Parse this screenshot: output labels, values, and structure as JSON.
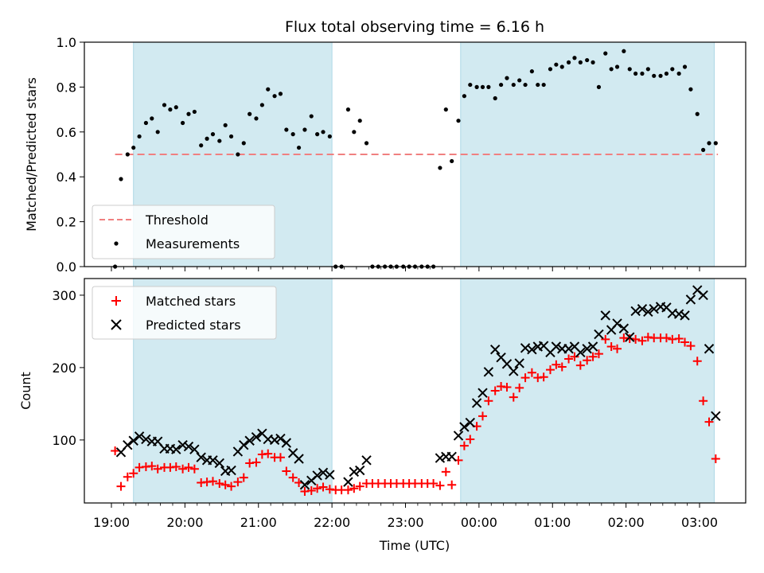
{
  "chart_data": {
    "type": "scatter",
    "title": "Flux total observing time = 6.16 h",
    "xlabel": "Time (UTC)",
    "x_ticks": [
      "19:00",
      "20:00",
      "21:00",
      "22:00",
      "23:00",
      "00:00",
      "01:00",
      "02:00",
      "03:00"
    ],
    "shaded_intervals_hours": [
      [
        19.3,
        22.0
      ],
      [
        23.75,
        27.2
      ]
    ],
    "shade_color": "#add8e6",
    "top": {
      "ylabel": "Matched/Predicted stars",
      "ylim": [
        0,
        1.0
      ],
      "y_ticks": [
        "0.0",
        "0.2",
        "0.4",
        "0.6",
        "0.8",
        "1.0"
      ],
      "threshold": {
        "name": "Threshold",
        "value": 0.5,
        "x_range_hours": [
          19.05,
          27.25
        ],
        "color": "#f08080"
      },
      "measurements_name": "Measurements",
      "measurements": [
        [
          19.05,
          0.0
        ],
        [
          19.13,
          0.39
        ],
        [
          19.22,
          0.5
        ],
        [
          19.3,
          0.53
        ],
        [
          19.38,
          0.58
        ],
        [
          19.47,
          0.64
        ],
        [
          19.55,
          0.66
        ],
        [
          19.63,
          0.6
        ],
        [
          19.72,
          0.72
        ],
        [
          19.8,
          0.7
        ],
        [
          19.88,
          0.71
        ],
        [
          19.97,
          0.64
        ],
        [
          20.05,
          0.68
        ],
        [
          20.13,
          0.69
        ],
        [
          20.22,
          0.54
        ],
        [
          20.3,
          0.57
        ],
        [
          20.38,
          0.59
        ],
        [
          20.47,
          0.56
        ],
        [
          20.55,
          0.63
        ],
        [
          20.63,
          0.58
        ],
        [
          20.72,
          0.5
        ],
        [
          20.8,
          0.55
        ],
        [
          20.88,
          0.68
        ],
        [
          20.97,
          0.66
        ],
        [
          21.05,
          0.72
        ],
        [
          21.13,
          0.79
        ],
        [
          21.22,
          0.76
        ],
        [
          21.3,
          0.77
        ],
        [
          21.38,
          0.61
        ],
        [
          21.47,
          0.59
        ],
        [
          21.55,
          0.53
        ],
        [
          21.63,
          0.61
        ],
        [
          21.72,
          0.67
        ],
        [
          21.8,
          0.59
        ],
        [
          21.88,
          0.6
        ],
        [
          21.97,
          0.58
        ],
        [
          22.05,
          0.0
        ],
        [
          22.13,
          0.0
        ],
        [
          22.22,
          0.7
        ],
        [
          22.3,
          0.6
        ],
        [
          22.38,
          0.65
        ],
        [
          22.47,
          0.55
        ],
        [
          22.55,
          0.0
        ],
        [
          22.63,
          0.0
        ],
        [
          22.72,
          0.0
        ],
        [
          22.8,
          0.0
        ],
        [
          22.88,
          0.0
        ],
        [
          22.97,
          0.0
        ],
        [
          23.05,
          0.0
        ],
        [
          23.13,
          0.0
        ],
        [
          23.22,
          0.0
        ],
        [
          23.3,
          0.0
        ],
        [
          23.38,
          0.0
        ],
        [
          23.47,
          0.44
        ],
        [
          23.55,
          0.7
        ],
        [
          23.63,
          0.47
        ],
        [
          23.72,
          0.65
        ],
        [
          23.8,
          0.76
        ],
        [
          23.88,
          0.81
        ],
        [
          23.97,
          0.8
        ],
        [
          24.05,
          0.8
        ],
        [
          24.13,
          0.8
        ],
        [
          24.22,
          0.75
        ],
        [
          24.3,
          0.81
        ],
        [
          24.38,
          0.84
        ],
        [
          24.47,
          0.81
        ],
        [
          24.55,
          0.83
        ],
        [
          24.63,
          0.81
        ],
        [
          24.72,
          0.87
        ],
        [
          24.8,
          0.81
        ],
        [
          24.88,
          0.81
        ],
        [
          24.97,
          0.88
        ],
        [
          25.05,
          0.9
        ],
        [
          25.13,
          0.89
        ],
        [
          25.22,
          0.91
        ],
        [
          25.3,
          0.93
        ],
        [
          25.38,
          0.91
        ],
        [
          25.47,
          0.92
        ],
        [
          25.55,
          0.91
        ],
        [
          25.63,
          0.8
        ],
        [
          25.72,
          0.95
        ],
        [
          25.8,
          0.88
        ],
        [
          25.88,
          0.89
        ],
        [
          25.97,
          0.96
        ],
        [
          26.05,
          0.88
        ],
        [
          26.13,
          0.86
        ],
        [
          26.22,
          0.86
        ],
        [
          26.3,
          0.88
        ],
        [
          26.38,
          0.85
        ],
        [
          26.47,
          0.85
        ],
        [
          26.55,
          0.86
        ],
        [
          26.63,
          0.88
        ],
        [
          26.72,
          0.86
        ],
        [
          26.8,
          0.89
        ],
        [
          26.88,
          0.79
        ],
        [
          26.97,
          0.68
        ],
        [
          27.05,
          0.52
        ],
        [
          27.13,
          0.55
        ],
        [
          27.22,
          0.55
        ]
      ]
    },
    "bottom": {
      "ylabel": "Count",
      "ylim": [
        13,
        323
      ],
      "y_ticks": [
        100,
        200,
        300
      ],
      "matched_name": "Matched stars",
      "matched_color": "#ff0000",
      "predicted_name": "Predicted stars",
      "predicted_color": "#000000",
      "matched": [
        [
          19.05,
          85
        ],
        [
          19.13,
          36
        ],
        [
          19.22,
          49
        ],
        [
          19.3,
          54
        ],
        [
          19.38,
          62
        ],
        [
          19.47,
          63
        ],
        [
          19.55,
          64
        ],
        [
          19.63,
          60
        ],
        [
          19.72,
          62
        ],
        [
          19.8,
          62
        ],
        [
          19.88,
          63
        ],
        [
          19.97,
          60
        ],
        [
          20.05,
          62
        ],
        [
          20.13,
          60
        ],
        [
          20.22,
          41
        ],
        [
          20.3,
          42
        ],
        [
          20.38,
          43
        ],
        [
          20.47,
          40
        ],
        [
          20.55,
          38
        ],
        [
          20.63,
          36
        ],
        [
          20.72,
          42
        ],
        [
          20.8,
          48
        ],
        [
          20.88,
          68
        ],
        [
          20.97,
          69
        ],
        [
          21.05,
          80
        ],
        [
          21.13,
          81
        ],
        [
          21.22,
          76
        ],
        [
          21.3,
          76
        ],
        [
          21.38,
          57
        ],
        [
          21.47,
          48
        ],
        [
          21.55,
          41
        ],
        [
          21.63,
          29
        ],
        [
          21.72,
          30
        ],
        [
          21.8,
          33
        ],
        [
          21.88,
          35
        ],
        [
          21.97,
          32
        ],
        [
          22.05,
          31
        ],
        [
          22.13,
          31
        ],
        [
          22.22,
          31
        ],
        [
          22.3,
          33
        ],
        [
          22.38,
          36
        ],
        [
          22.47,
          40
        ],
        [
          22.55,
          40
        ],
        [
          22.63,
          40
        ],
        [
          22.72,
          40
        ],
        [
          22.8,
          40
        ],
        [
          22.88,
          40
        ],
        [
          22.97,
          40
        ],
        [
          23.05,
          40
        ],
        [
          23.13,
          40
        ],
        [
          23.22,
          40
        ],
        [
          23.3,
          40
        ],
        [
          23.38,
          40
        ],
        [
          23.47,
          37
        ],
        [
          23.55,
          56
        ],
        [
          23.63,
          38
        ],
        [
          23.72,
          72
        ],
        [
          23.8,
          92
        ],
        [
          23.88,
          101
        ],
        [
          23.97,
          119
        ],
        [
          24.05,
          133
        ],
        [
          24.13,
          154
        ],
        [
          24.22,
          168
        ],
        [
          24.3,
          174
        ],
        [
          24.38,
          173
        ],
        [
          24.47,
          159
        ],
        [
          24.55,
          172
        ],
        [
          24.63,
          186
        ],
        [
          24.72,
          193
        ],
        [
          24.8,
          186
        ],
        [
          24.88,
          187
        ],
        [
          24.97,
          197
        ],
        [
          25.05,
          204
        ],
        [
          25.13,
          201
        ],
        [
          25.22,
          212
        ],
        [
          25.3,
          215
        ],
        [
          25.38,
          203
        ],
        [
          25.47,
          210
        ],
        [
          25.55,
          215
        ],
        [
          25.63,
          219
        ],
        [
          25.72,
          239
        ],
        [
          25.8,
          229
        ],
        [
          25.88,
          226
        ],
        [
          25.97,
          241
        ],
        [
          26.05,
          240
        ],
        [
          26.13,
          239
        ],
        [
          26.22,
          237
        ],
        [
          26.3,
          242
        ],
        [
          26.38,
          241
        ],
        [
          26.47,
          241
        ],
        [
          26.55,
          241
        ],
        [
          26.63,
          239
        ],
        [
          26.72,
          240
        ],
        [
          26.8,
          235
        ],
        [
          26.88,
          230
        ],
        [
          26.97,
          209
        ],
        [
          27.05,
          154
        ],
        [
          27.13,
          125
        ],
        [
          27.22,
          74
        ]
      ],
      "predicted": [
        [
          19.13,
          83
        ],
        [
          19.22,
          93
        ],
        [
          19.3,
          99
        ],
        [
          19.38,
          105
        ],
        [
          19.47,
          101
        ],
        [
          19.55,
          98
        ],
        [
          19.63,
          98
        ],
        [
          19.72,
          88
        ],
        [
          19.8,
          88
        ],
        [
          19.88,
          87
        ],
        [
          19.97,
          93
        ],
        [
          20.05,
          91
        ],
        [
          20.13,
          87
        ],
        [
          20.22,
          76
        ],
        [
          20.3,
          72
        ],
        [
          20.38,
          72
        ],
        [
          20.47,
          68
        ],
        [
          20.55,
          57
        ],
        [
          20.63,
          58
        ],
        [
          20.72,
          84
        ],
        [
          20.8,
          93
        ],
        [
          20.88,
          99
        ],
        [
          20.97,
          104
        ],
        [
          21.05,
          109
        ],
        [
          21.13,
          101
        ],
        [
          21.22,
          100
        ],
        [
          21.3,
          102
        ],
        [
          21.38,
          96
        ],
        [
          21.47,
          82
        ],
        [
          21.55,
          74
        ],
        [
          21.63,
          38
        ],
        [
          21.72,
          44
        ],
        [
          21.8,
          51
        ],
        [
          21.88,
          55
        ],
        [
          21.97,
          52
        ],
        [
          22.22,
          42
        ],
        [
          22.3,
          56
        ],
        [
          22.38,
          58
        ],
        [
          22.47,
          72
        ],
        [
          23.47,
          75
        ],
        [
          23.55,
          77
        ],
        [
          23.63,
          77
        ],
        [
          23.72,
          106
        ],
        [
          23.8,
          118
        ],
        [
          23.88,
          124
        ],
        [
          23.97,
          151
        ],
        [
          24.05,
          165
        ],
        [
          24.13,
          194
        ],
        [
          24.22,
          225
        ],
        [
          24.3,
          214
        ],
        [
          24.38,
          205
        ],
        [
          24.47,
          195
        ],
        [
          24.55,
          206
        ],
        [
          24.63,
          227
        ],
        [
          24.72,
          225
        ],
        [
          24.8,
          229
        ],
        [
          24.88,
          230
        ],
        [
          24.97,
          221
        ],
        [
          25.05,
          229
        ],
        [
          25.13,
          226
        ],
        [
          25.22,
          226
        ],
        [
          25.3,
          229
        ],
        [
          25.38,
          221
        ],
        [
          25.47,
          226
        ],
        [
          25.55,
          229
        ],
        [
          25.63,
          246
        ],
        [
          25.72,
          272
        ],
        [
          25.8,
          252
        ],
        [
          25.88,
          261
        ],
        [
          25.97,
          254
        ],
        [
          26.05,
          242
        ],
        [
          26.13,
          278
        ],
        [
          26.22,
          281
        ],
        [
          26.3,
          277
        ],
        [
          26.38,
          281
        ],
        [
          26.47,
          284
        ],
        [
          26.55,
          283
        ],
        [
          26.63,
          275
        ],
        [
          26.72,
          274
        ],
        [
          26.8,
          272
        ],
        [
          26.88,
          294
        ],
        [
          26.97,
          307
        ],
        [
          27.05,
          300
        ],
        [
          27.13,
          226
        ],
        [
          27.22,
          133
        ]
      ]
    }
  }
}
